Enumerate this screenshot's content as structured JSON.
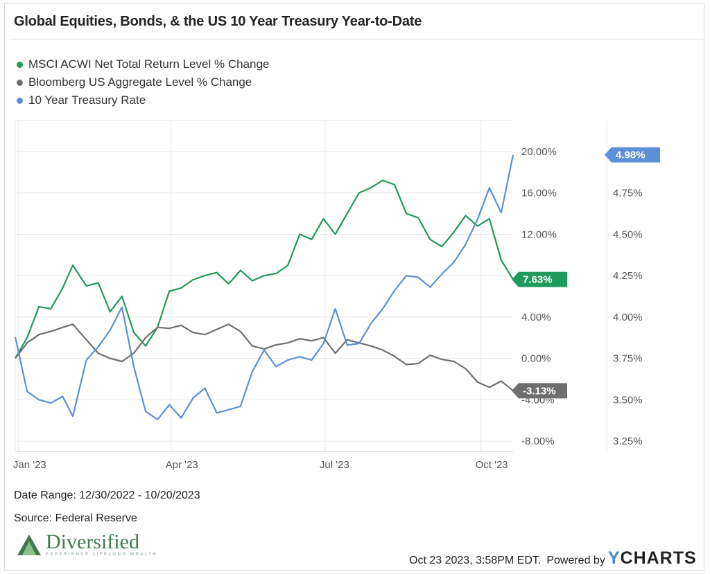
{
  "title": "Global Equities, Bonds, & the US 10 Year Treasury Year-to-Date",
  "legend": [
    {
      "name": "MSCI ACWI Net Total Return Level % Change",
      "color": "#1e9a5a"
    },
    {
      "name": "Bloomberg US Aggregate Level % Change",
      "color": "#6e6e6e"
    },
    {
      "name": "10 Year Treasury Rate",
      "color": "#5b8fd6"
    }
  ],
  "footer": {
    "date_range": "Date Range: 12/30/2022 - 10/20/2023",
    "source": "Source: Federal Reserve",
    "timestamp": "Oct 23 2023, 3:58PM EDT.",
    "powered_by": "Powered by",
    "brand_y": "Y",
    "brand_rest": "CHARTS",
    "logo_name": "Diversified",
    "logo_tagline": "EXPERIENCE LIFELONG WEALTH"
  },
  "chart_data": {
    "type": "line",
    "x_range": [
      "2022-12-30",
      "2023-10-20"
    ],
    "x_ticks": [
      {
        "date": "2023-01-01",
        "label": "Jan '23"
      },
      {
        "date": "2023-04-01",
        "label": "Apr '23"
      },
      {
        "date": "2023-07-01",
        "label": "Jul '23"
      },
      {
        "date": "2023-10-01",
        "label": "Oct '23"
      }
    ],
    "y_left": {
      "range": [
        -9,
        23
      ],
      "ticks": [
        -8,
        -4,
        0,
        4,
        8,
        12,
        16,
        20
      ],
      "tick_labels": [
        "-8.00%",
        "-4.00%",
        "0.00%",
        "4.00%",
        "8.00%",
        "12.00%",
        "16.00%",
        "20.00%"
      ]
    },
    "y_right": {
      "range": [
        3.1875,
        5.1875
      ],
      "ticks": [
        3.25,
        3.5,
        3.75,
        4.0,
        4.25,
        4.5,
        4.75,
        5.0
      ],
      "tick_labels": [
        "3.25%",
        "3.50%",
        "3.75%",
        "4.00%",
        "4.25%",
        "4.50%",
        "4.75%",
        "5.00%"
      ]
    },
    "grid": true,
    "legend_position": "top-left",
    "series": [
      {
        "name": "MSCI ACWI Net Total Return Level % Change",
        "axis": "left",
        "color": "#1e9a5a",
        "end_label": "7.63%",
        "points": [
          [
            "2022-12-30",
            0.0
          ],
          [
            "2023-01-06",
            2.0
          ],
          [
            "2023-01-13",
            5.0
          ],
          [
            "2023-01-20",
            4.8
          ],
          [
            "2023-01-27",
            6.8
          ],
          [
            "2023-02-02",
            9.0
          ],
          [
            "2023-02-10",
            7.0
          ],
          [
            "2023-02-17",
            7.3
          ],
          [
            "2023-02-24",
            4.5
          ],
          [
            "2023-03-03",
            6.0
          ],
          [
            "2023-03-10",
            2.5
          ],
          [
            "2023-03-17",
            1.2
          ],
          [
            "2023-03-24",
            3.0
          ],
          [
            "2023-03-31",
            6.5
          ],
          [
            "2023-04-07",
            6.8
          ],
          [
            "2023-04-14",
            7.6
          ],
          [
            "2023-04-21",
            8.0
          ],
          [
            "2023-04-28",
            8.3
          ],
          [
            "2023-05-05",
            7.2
          ],
          [
            "2023-05-12",
            8.5
          ],
          [
            "2023-05-19",
            7.5
          ],
          [
            "2023-05-26",
            8.0
          ],
          [
            "2023-06-02",
            8.2
          ],
          [
            "2023-06-09",
            9.0
          ],
          [
            "2023-06-16",
            12.0
          ],
          [
            "2023-06-23",
            11.5
          ],
          [
            "2023-06-30",
            13.5
          ],
          [
            "2023-07-07",
            12.0
          ],
          [
            "2023-07-14",
            14.0
          ],
          [
            "2023-07-21",
            16.0
          ],
          [
            "2023-07-28",
            16.5
          ],
          [
            "2023-08-04",
            17.2
          ],
          [
            "2023-08-11",
            16.8
          ],
          [
            "2023-08-18",
            14.0
          ],
          [
            "2023-08-25",
            13.6
          ],
          [
            "2023-09-01",
            11.5
          ],
          [
            "2023-09-08",
            10.8
          ],
          [
            "2023-09-15",
            12.2
          ],
          [
            "2023-09-22",
            13.8
          ],
          [
            "2023-09-29",
            12.8
          ],
          [
            "2023-10-06",
            13.5
          ],
          [
            "2023-10-13",
            9.5
          ],
          [
            "2023-10-20",
            7.63
          ]
        ]
      },
      {
        "name": "Bloomberg US Aggregate Level % Change",
        "axis": "left",
        "color": "#6e6e6e",
        "end_label": "-3.13%",
        "points": [
          [
            "2022-12-30",
            0.0
          ],
          [
            "2023-01-06",
            1.5
          ],
          [
            "2023-01-13",
            2.3
          ],
          [
            "2023-01-20",
            2.6
          ],
          [
            "2023-01-27",
            3.0
          ],
          [
            "2023-02-02",
            3.3
          ],
          [
            "2023-02-10",
            1.8
          ],
          [
            "2023-02-17",
            0.5
          ],
          [
            "2023-02-24",
            0.0
          ],
          [
            "2023-03-03",
            -0.3
          ],
          [
            "2023-03-10",
            0.5
          ],
          [
            "2023-03-17",
            2.0
          ],
          [
            "2023-03-24",
            3.0
          ],
          [
            "2023-03-31",
            2.9
          ],
          [
            "2023-04-07",
            3.2
          ],
          [
            "2023-04-14",
            2.5
          ],
          [
            "2023-04-21",
            2.3
          ],
          [
            "2023-04-28",
            2.8
          ],
          [
            "2023-05-05",
            3.3
          ],
          [
            "2023-05-12",
            2.6
          ],
          [
            "2023-05-19",
            1.2
          ],
          [
            "2023-05-26",
            0.9
          ],
          [
            "2023-06-02",
            1.3
          ],
          [
            "2023-06-09",
            1.5
          ],
          [
            "2023-06-16",
            1.9
          ],
          [
            "2023-06-23",
            1.7
          ],
          [
            "2023-06-30",
            2.0
          ],
          [
            "2023-07-07",
            0.5
          ],
          [
            "2023-07-14",
            1.8
          ],
          [
            "2023-07-21",
            1.5
          ],
          [
            "2023-07-28",
            1.2
          ],
          [
            "2023-08-04",
            0.8
          ],
          [
            "2023-08-11",
            0.2
          ],
          [
            "2023-08-18",
            -0.6
          ],
          [
            "2023-08-25",
            -0.5
          ],
          [
            "2023-09-01",
            0.3
          ],
          [
            "2023-09-08",
            -0.1
          ],
          [
            "2023-09-15",
            -0.3
          ],
          [
            "2023-09-22",
            -1.0
          ],
          [
            "2023-09-29",
            -2.3
          ],
          [
            "2023-10-06",
            -2.8
          ],
          [
            "2023-10-13",
            -2.2
          ],
          [
            "2023-10-20",
            -3.13
          ]
        ]
      },
      {
        "name": "10 Year Treasury Rate",
        "axis": "right",
        "color": "#5b8fd6",
        "end_label": "4.98%",
        "points": [
          [
            "2022-12-30",
            3.88
          ],
          [
            "2023-01-06",
            3.55
          ],
          [
            "2023-01-13",
            3.5
          ],
          [
            "2023-01-20",
            3.48
          ],
          [
            "2023-01-27",
            3.52
          ],
          [
            "2023-02-02",
            3.4
          ],
          [
            "2023-02-10",
            3.74
          ],
          [
            "2023-02-17",
            3.82
          ],
          [
            "2023-02-24",
            3.92
          ],
          [
            "2023-03-03",
            4.06
          ],
          [
            "2023-03-10",
            3.7
          ],
          [
            "2023-03-17",
            3.43
          ],
          [
            "2023-03-24",
            3.38
          ],
          [
            "2023-03-31",
            3.47
          ],
          [
            "2023-04-07",
            3.39
          ],
          [
            "2023-04-14",
            3.51
          ],
          [
            "2023-04-21",
            3.57
          ],
          [
            "2023-04-28",
            3.42
          ],
          [
            "2023-05-05",
            3.44
          ],
          [
            "2023-05-12",
            3.46
          ],
          [
            "2023-05-19",
            3.67
          ],
          [
            "2023-05-26",
            3.8
          ],
          [
            "2023-06-02",
            3.7
          ],
          [
            "2023-06-09",
            3.74
          ],
          [
            "2023-06-16",
            3.76
          ],
          [
            "2023-06-23",
            3.74
          ],
          [
            "2023-06-30",
            3.84
          ],
          [
            "2023-07-07",
            4.05
          ],
          [
            "2023-07-14",
            3.83
          ],
          [
            "2023-07-21",
            3.84
          ],
          [
            "2023-07-28",
            3.96
          ],
          [
            "2023-08-04",
            4.05
          ],
          [
            "2023-08-11",
            4.16
          ],
          [
            "2023-08-18",
            4.25
          ],
          [
            "2023-08-25",
            4.24
          ],
          [
            "2023-09-01",
            4.18
          ],
          [
            "2023-09-08",
            4.26
          ],
          [
            "2023-09-15",
            4.33
          ],
          [
            "2023-09-22",
            4.44
          ],
          [
            "2023-09-29",
            4.59
          ],
          [
            "2023-10-06",
            4.78
          ],
          [
            "2023-10-13",
            4.63
          ],
          [
            "2023-10-20",
            4.98
          ]
        ]
      }
    ]
  }
}
